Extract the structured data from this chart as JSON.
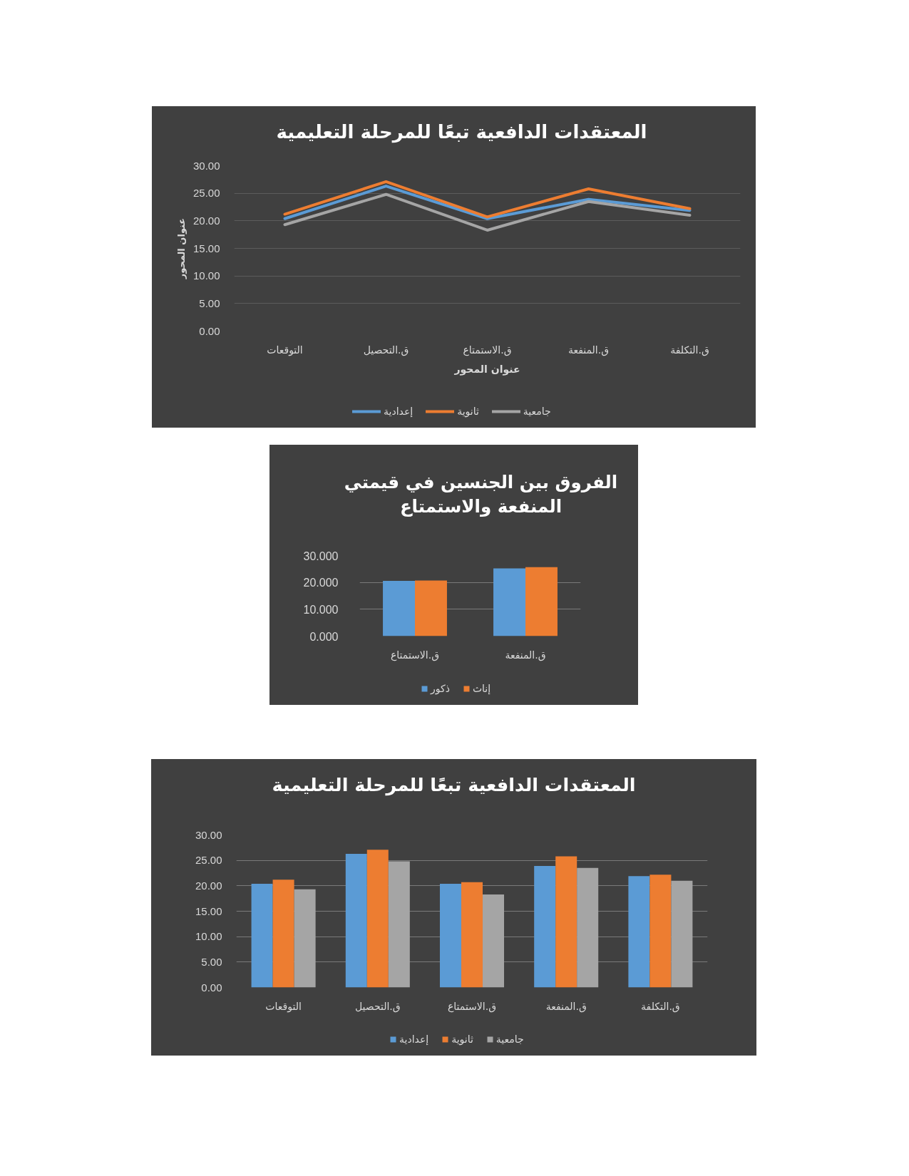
{
  "chart_data": [
    {
      "type": "line",
      "title": "المعتقدات الدافعية تبعًا للمرحلة التعليمية",
      "xlabel": "عنوان المحور",
      "ylabel": "عنوان المحور",
      "categories": [
        "التوقعات",
        "ق.التحصيل",
        "ق.الاستمتاع",
        "ق.المنفعة",
        "ق.التكلفة"
      ],
      "series": [
        {
          "name": "إعدادية",
          "color": "#5b9bd5",
          "values": [
            20.4,
            26.3,
            20.4,
            23.9,
            21.9
          ]
        },
        {
          "name": "ثانوية",
          "color": "#ed7d31",
          "values": [
            21.2,
            27.1,
            20.7,
            25.8,
            22.2
          ]
        },
        {
          "name": "جامعية",
          "color": "#a5a5a5",
          "values": [
            19.3,
            24.8,
            18.3,
            23.5,
            21.0
          ]
        }
      ],
      "ylim": [
        0,
        30
      ],
      "yticks": [
        {
          "value": 0,
          "label": "0.00"
        },
        {
          "value": 5,
          "label": "5.00"
        },
        {
          "value": 10,
          "label": "10.00"
        },
        {
          "value": 15,
          "label": "15.00"
        },
        {
          "value": 20,
          "label": "20.00"
        },
        {
          "value": 25,
          "label": "25.00"
        },
        {
          "value": 30,
          "label": "30.00"
        }
      ],
      "grid": "y",
      "legend": "bottom"
    },
    {
      "type": "bar",
      "title": "الفروق بين الجنسين في قيمتي المنفعة والاستمتاع",
      "categories": [
        "ق.الاستمتاع",
        "ق.المنفعة"
      ],
      "series": [
        {
          "name": "ذكور",
          "color": "#5b9bd5",
          "values": [
            20.6,
            25.2
          ]
        },
        {
          "name": "إناث",
          "color": "#ed7d31",
          "values": [
            20.7,
            25.7
          ]
        }
      ],
      "ylim": [
        0,
        30
      ],
      "yticks": [
        {
          "value": 0,
          "label": "0.000"
        },
        {
          "value": 10,
          "label": "10.000"
        },
        {
          "value": 20,
          "label": "20.000"
        },
        {
          "value": 30,
          "label": "30.000"
        }
      ],
      "grid": "y",
      "legend": "bottom"
    },
    {
      "type": "bar",
      "title": "المعتقدات الدافعية تبعًا للمرحلة التعليمية",
      "categories": [
        "التوقعات",
        "ق.التحصيل",
        "ق.الاستمتاع",
        "ق.المنفعة",
        "ق.التكلفة"
      ],
      "series": [
        {
          "name": "إعدادية",
          "color": "#5b9bd5",
          "values": [
            20.4,
            26.3,
            20.4,
            23.9,
            21.9
          ]
        },
        {
          "name": "ثانوية",
          "color": "#ed7d31",
          "values": [
            21.2,
            27.1,
            20.7,
            25.8,
            22.2
          ]
        },
        {
          "name": "جامعية",
          "color": "#a5a5a5",
          "values": [
            19.3,
            24.8,
            18.3,
            23.5,
            21.0
          ]
        }
      ],
      "ylim": [
        0,
        30
      ],
      "yticks": [
        {
          "value": 0,
          "label": "0.00"
        },
        {
          "value": 5,
          "label": "5.00"
        },
        {
          "value": 10,
          "label": "10.00"
        },
        {
          "value": 15,
          "label": "15.00"
        },
        {
          "value": 20,
          "label": "20.00"
        },
        {
          "value": 25,
          "label": "25.00"
        },
        {
          "value": 30,
          "label": "30.00"
        }
      ],
      "grid": "y",
      "legend": "bottom"
    }
  ]
}
